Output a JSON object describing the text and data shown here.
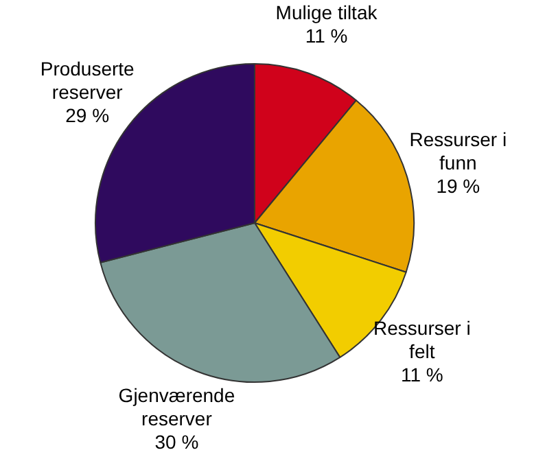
{
  "chart_data": {
    "type": "pie",
    "categories": [
      "Mulige tiltak",
      "Ressurser i funn",
      "Ressurser i felt",
      "Gjenværende reserver",
      "Produserte reserver"
    ],
    "values": [
      11,
      19,
      11,
      30,
      29
    ],
    "value_labels": [
      "11 %",
      "19 %",
      "11 %",
      "30 %",
      "29 %"
    ],
    "colors": [
      "#d0021b",
      "#e9a400",
      "#f2cd00",
      "#7b9a95",
      "#2f0a5e"
    ],
    "legend": false
  }
}
